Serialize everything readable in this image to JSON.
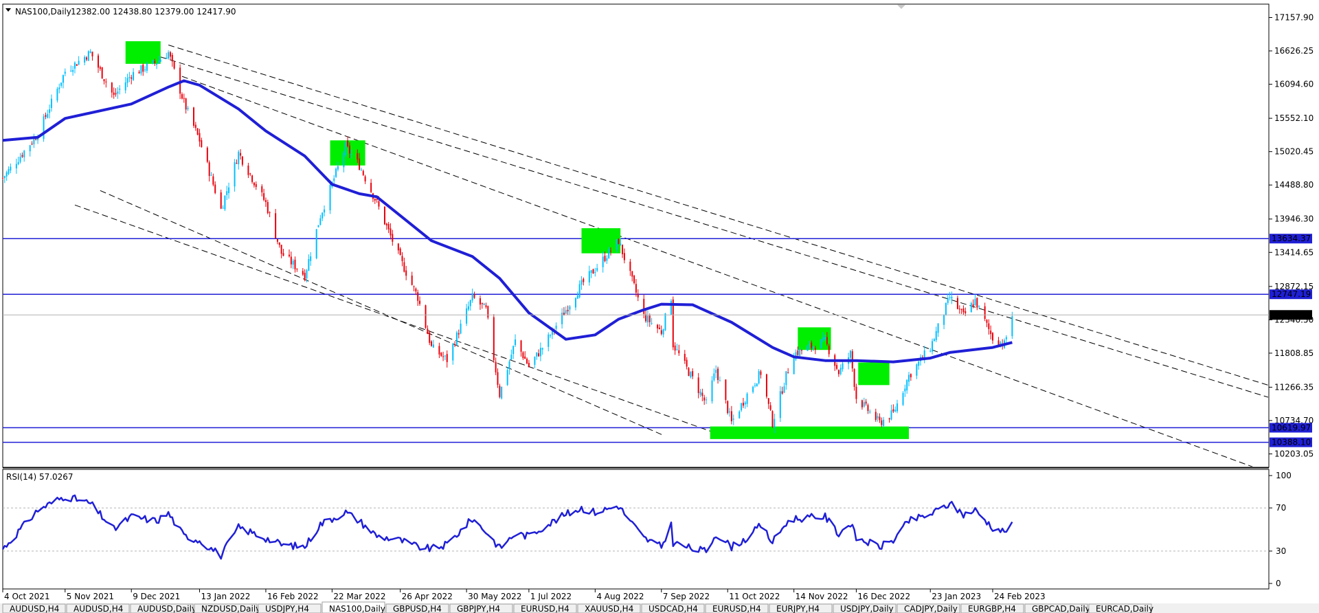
{
  "header": {
    "symbol": "NAS100,Daily",
    "ohlc": "12382.00 12438.80 12379.00 12417.90"
  },
  "rsi_panel": {
    "label": "RSI(14) 57.0267"
  },
  "tabs": [
    "AUDUSD,H4",
    "AUDUSD,H4",
    "AUDUSD,Daily",
    "NZDUSD,Daily",
    "USDJPY,H4",
    "NAS100,Daily",
    "GBPUSD,H4",
    "GBPJPY,H4",
    "EURUSD,H4",
    "XAUUSD,H4",
    "USDCAD,H4",
    "EURUSD,H4",
    "EURJPY,H4",
    "USDJPY,Daily",
    "CADJPY,Daily",
    "EURGBP,H4",
    "GBPCAD,Daily",
    "EURCAD,Daily"
  ],
  "active_tab": 5,
  "colors": {
    "bull": "#00bfff",
    "bear": "#e8000b",
    "ma": "#1f1fd6",
    "level": "#1f1fd6",
    "highlight": "#00ee00",
    "rsi": "#1f1fd6"
  },
  "chart_data": [
    {
      "type": "candlestick",
      "title": "NAS100,Daily",
      "ylim": [
        10000,
        17350
      ],
      "y_ticks": [
        "17157.90",
        "16626.25",
        "16094.60",
        "15552.10",
        "15020.45",
        "14488.80",
        "13946.30",
        "13414.65",
        "12872.15",
        "12340.50",
        "11808.85",
        "11266.35",
        "10734.70",
        "10203.05"
      ],
      "x_ticks": [
        "4 Oct 2021",
        "5 Nov 2021",
        "9 Dec 2021",
        "13 Jan 2022",
        "16 Feb 2022",
        "22 Mar 2022",
        "26 Apr 2022",
        "30 May 2022",
        "1 Jul 2022",
        "4 Aug 2022",
        "7 Sep 2022",
        "11 Oct 2022",
        "14 Nov 2022",
        "16 Dec 2022",
        "23 Jan 2023",
        "24 Feb 2023"
      ],
      "levels": [
        {
          "label": "13634.37",
          "value": 13634.37
        },
        {
          "label": "12747.19",
          "value": 12747.19
        },
        {
          "label": "10619.97",
          "value": 10619.97
        },
        {
          "label": "10388.10",
          "value": 10388.1
        }
      ],
      "current_price": {
        "label": "12417.90",
        "value": 12417.9
      },
      "close_path": [
        {
          "date": "4 Oct 2021",
          "close": 14600
        },
        {
          "date": "22 Oct 2021",
          "close": 15300
        },
        {
          "date": "5 Nov 2021",
          "close": 16300
        },
        {
          "date": "18 Nov 2021",
          "close": 16600
        },
        {
          "date": "30 Nov 2021",
          "close": 15900
        },
        {
          "date": "9 Dec 2021",
          "close": 16250
        },
        {
          "date": "22 Dec 2021",
          "close": 16450
        },
        {
          "date": "28 Dec 2021",
          "close": 16600
        },
        {
          "date": "5 Jan 2022",
          "close": 15800
        },
        {
          "date": "13 Jan 2022",
          "close": 15200
        },
        {
          "date": "24 Jan 2022",
          "close": 14100
        },
        {
          "date": "2 Feb 2022",
          "close": 15000
        },
        {
          "date": "16 Feb 2022",
          "close": 14200
        },
        {
          "date": "24 Feb 2022",
          "close": 13400
        },
        {
          "date": "8 Mar 2022",
          "close": 13050
        },
        {
          "date": "16 Mar 2022",
          "close": 14000
        },
        {
          "date": "29 Mar 2022",
          "close": 15100
        },
        {
          "date": "5 Apr 2022",
          "close": 14800
        },
        {
          "date": "14 Apr 2022",
          "close": 14200
        },
        {
          "date": "26 Apr 2022",
          "close": 13300
        },
        {
          "date": "5 May 2022",
          "close": 12700
        },
        {
          "date": "12 May 2022",
          "close": 11900
        },
        {
          "date": "20 May 2022",
          "close": 11700
        },
        {
          "date": "2 Jun 2022",
          "close": 12700
        },
        {
          "date": "9 Jun 2022",
          "close": 12500
        },
        {
          "date": "16 Jun 2022",
          "close": 11150
        },
        {
          "date": "24 Jun 2022",
          "close": 12000
        },
        {
          "date": "1 Jul 2022",
          "close": 11600
        },
        {
          "date": "8 Jul 2022",
          "close": 11900
        },
        {
          "date": "20 Jul 2022",
          "close": 12500
        },
        {
          "date": "28 Jul 2022",
          "close": 12900
        },
        {
          "date": "4 Aug 2022",
          "close": 13150
        },
        {
          "date": "16 Aug 2022",
          "close": 13600
        },
        {
          "date": "22 Aug 2022",
          "close": 13050
        },
        {
          "date": "29 Aug 2022",
          "close": 12400
        },
        {
          "date": "7 Sep 2022",
          "close": 12150
        },
        {
          "date": "12 Sep 2022",
          "close": 12700
        },
        {
          "date": "13 Sep 2022",
          "close": 11950
        },
        {
          "date": "23 Sep 2022",
          "close": 11400
        },
        {
          "date": "30 Sep 2022",
          "close": 11000
        },
        {
          "date": "5 Oct 2022",
          "close": 11550
        },
        {
          "date": "13 Oct 2022",
          "close": 10700
        },
        {
          "date": "21 Oct 2022",
          "close": 11150
        },
        {
          "date": "28 Oct 2022",
          "close": 11500
        },
        {
          "date": "3 Nov 2022",
          "close": 10700
        },
        {
          "date": "10 Nov 2022",
          "close": 11450
        },
        {
          "date": "14 Nov 2022",
          "close": 11800
        },
        {
          "date": "30 Nov 2022",
          "close": 12000
        },
        {
          "date": "7 Dec 2022",
          "close": 11500
        },
        {
          "date": "13 Dec 2022",
          "close": 11800
        },
        {
          "date": "16 Dec 2022",
          "close": 11100
        },
        {
          "date": "28 Dec 2022",
          "close": 10700
        },
        {
          "date": "4 Jan 2023",
          "close": 10850
        },
        {
          "date": "12 Jan 2023",
          "close": 11450
        },
        {
          "date": "23 Jan 2023",
          "close": 11900
        },
        {
          "date": "2 Feb 2023",
          "close": 12700
        },
        {
          "date": "9 Feb 2023",
          "close": 12400
        },
        {
          "date": "15 Feb 2023",
          "close": 12650
        },
        {
          "date": "24 Feb 2023",
          "close": 12050
        },
        {
          "date": "2 Mar 2023",
          "close": 11950
        },
        {
          "date": "6 Mar 2023",
          "close": 12417.9
        }
      ],
      "moving_average": [
        {
          "date": "4 Oct 2021",
          "value": 15200
        },
        {
          "date": "22 Oct 2021",
          "value": 15250
        },
        {
          "date": "5 Nov 2021",
          "value": 15550
        },
        {
          "date": "9 Dec 2021",
          "value": 15780
        },
        {
          "date": "28 Dec 2021",
          "value": 16050
        },
        {
          "date": "5 Jan 2022",
          "value": 16150
        },
        {
          "date": "13 Jan 2022",
          "value": 16080
        },
        {
          "date": "2 Feb 2022",
          "value": 15700
        },
        {
          "date": "16 Feb 2022",
          "value": 15350
        },
        {
          "date": "8 Mar 2022",
          "value": 14950
        },
        {
          "date": "22 Mar 2022",
          "value": 14500
        },
        {
          "date": "5 Apr 2022",
          "value": 14350
        },
        {
          "date": "14 Apr 2022",
          "value": 14300
        },
        {
          "date": "26 Apr 2022",
          "value": 14000
        },
        {
          "date": "12 May 2022",
          "value": 13600
        },
        {
          "date": "2 Jun 2022",
          "value": 13350
        },
        {
          "date": "16 Jun 2022",
          "value": 13000
        },
        {
          "date": "1 Jul 2022",
          "value": 12450
        },
        {
          "date": "20 Jul 2022",
          "value": 12030
        },
        {
          "date": "4 Aug 2022",
          "value": 12100
        },
        {
          "date": "16 Aug 2022",
          "value": 12350
        },
        {
          "date": "29 Aug 2022",
          "value": 12500
        },
        {
          "date": "7 Sep 2022",
          "value": 12590
        },
        {
          "date": "23 Sep 2022",
          "value": 12580
        },
        {
          "date": "13 Oct 2022",
          "value": 12300
        },
        {
          "date": "3 Nov 2022",
          "value": 11900
        },
        {
          "date": "14 Nov 2022",
          "value": 11750
        },
        {
          "date": "30 Nov 2022",
          "value": 11690
        },
        {
          "date": "16 Dec 2022",
          "value": 11690
        },
        {
          "date": "4 Jan 2023",
          "value": 11670
        },
        {
          "date": "23 Jan 2023",
          "value": 11730
        },
        {
          "date": "2 Feb 2023",
          "value": 11820
        },
        {
          "date": "24 Feb 2023",
          "value": 11900
        },
        {
          "date": "6 Mar 2023",
          "value": 11980
        }
      ]
    },
    {
      "type": "line",
      "title": "RSI(14) 57.0267",
      "ylim": [
        0,
        100
      ],
      "y_ticks": [
        100,
        70,
        30,
        0
      ],
      "grid_levels": [
        70,
        30
      ],
      "series": [
        {
          "values": [
            {
              "date": "4 Oct 2021",
              "value": 32
            },
            {
              "date": "22 Oct 2021",
              "value": 68
            },
            {
              "date": "5 Nov 2021",
              "value": 81
            },
            {
              "date": "18 Nov 2021",
              "value": 74
            },
            {
              "date": "30 Nov 2021",
              "value": 50
            },
            {
              "date": "9 Dec 2021",
              "value": 62
            },
            {
              "date": "22 Dec 2021",
              "value": 58
            },
            {
              "date": "28 Dec 2021",
              "value": 65
            },
            {
              "date": "5 Jan 2022",
              "value": 44
            },
            {
              "date": "13 Jan 2022",
              "value": 40
            },
            {
              "date": "24 Jan 2022",
              "value": 26
            },
            {
              "date": "2 Feb 2022",
              "value": 52
            },
            {
              "date": "16 Feb 2022",
              "value": 42
            },
            {
              "date": "24 Feb 2022",
              "value": 36
            },
            {
              "date": "8 Mar 2022",
              "value": 34
            },
            {
              "date": "16 Mar 2022",
              "value": 55
            },
            {
              "date": "29 Mar 2022",
              "value": 66
            },
            {
              "date": "5 Apr 2022",
              "value": 58
            },
            {
              "date": "14 Apr 2022",
              "value": 44
            },
            {
              "date": "26 Apr 2022",
              "value": 40
            },
            {
              "date": "5 May 2022",
              "value": 34
            },
            {
              "date": "12 May 2022",
              "value": 32
            },
            {
              "date": "20 May 2022",
              "value": 36
            },
            {
              "date": "2 Jun 2022",
              "value": 60
            },
            {
              "date": "9 Jun 2022",
              "value": 48
            },
            {
              "date": "16 Jun 2022",
              "value": 33
            },
            {
              "date": "24 Jun 2022",
              "value": 46
            },
            {
              "date": "1 Jul 2022",
              "value": 44
            },
            {
              "date": "8 Jul 2022",
              "value": 52
            },
            {
              "date": "20 Jul 2022",
              "value": 64
            },
            {
              "date": "28 Jul 2022",
              "value": 70
            },
            {
              "date": "4 Aug 2022",
              "value": 66
            },
            {
              "date": "16 Aug 2022",
              "value": 72
            },
            {
              "date": "22 Aug 2022",
              "value": 58
            },
            {
              "date": "29 Aug 2022",
              "value": 42
            },
            {
              "date": "7 Sep 2022",
              "value": 34
            },
            {
              "date": "12 Sep 2022",
              "value": 54
            },
            {
              "date": "13 Sep 2022",
              "value": 38
            },
            {
              "date": "23 Sep 2022",
              "value": 32
            },
            {
              "date": "30 Sep 2022",
              "value": 30
            },
            {
              "date": "5 Oct 2022",
              "value": 46
            },
            {
              "date": "13 Oct 2022",
              "value": 34
            },
            {
              "date": "21 Oct 2022",
              "value": 42
            },
            {
              "date": "28 Oct 2022",
              "value": 54
            },
            {
              "date": "3 Nov 2022",
              "value": 38
            },
            {
              "date": "10 Nov 2022",
              "value": 56
            },
            {
              "date": "14 Nov 2022",
              "value": 60
            },
            {
              "date": "30 Nov 2022",
              "value": 62
            },
            {
              "date": "7 Dec 2022",
              "value": 46
            },
            {
              "date": "13 Dec 2022",
              "value": 56
            },
            {
              "date": "16 Dec 2022",
              "value": 42
            },
            {
              "date": "28 Dec 2022",
              "value": 34
            },
            {
              "date": "4 Jan 2023",
              "value": 40
            },
            {
              "date": "12 Jan 2023",
              "value": 58
            },
            {
              "date": "23 Jan 2023",
              "value": 64
            },
            {
              "date": "2 Feb 2023",
              "value": 74
            },
            {
              "date": "9 Feb 2023",
              "value": 64
            },
            {
              "date": "15 Feb 2023",
              "value": 68
            },
            {
              "date": "24 Feb 2023",
              "value": 52
            },
            {
              "date": "2 Mar 2023",
              "value": 48
            },
            {
              "date": "6 Mar 2023",
              "value": 57.03
            }
          ]
        }
      ]
    }
  ]
}
